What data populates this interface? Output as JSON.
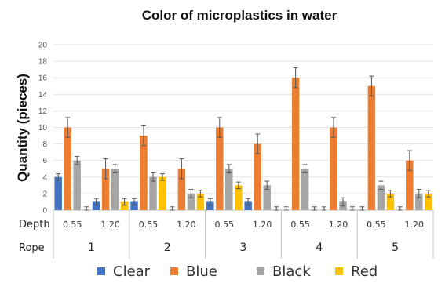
{
  "chart_data": {
    "type": "bar",
    "title": "Color of microplastics in water",
    "ylabel": "Quantity (pieces)",
    "xlabel": "",
    "ylim": [
      0,
      20
    ],
    "yticks": [
      0,
      2,
      4,
      6,
      8,
      10,
      12,
      14,
      16,
      18,
      20
    ],
    "grid": true,
    "legend_position": "bottom",
    "row_labels": {
      "depth": "Depth",
      "rope": "Rope"
    },
    "ropes": [
      "1",
      "2",
      "3",
      "4",
      "5"
    ],
    "depths": [
      "0.55",
      "1.20"
    ],
    "categories": [
      {
        "rope": "1",
        "depth": "0.55"
      },
      {
        "rope": "1",
        "depth": "1.20"
      },
      {
        "rope": "2",
        "depth": "0.55"
      },
      {
        "rope": "2",
        "depth": "1.20"
      },
      {
        "rope": "3",
        "depth": "0.55"
      },
      {
        "rope": "3",
        "depth": "1.20"
      },
      {
        "rope": "4",
        "depth": "0.55"
      },
      {
        "rope": "4",
        "depth": "1.20"
      },
      {
        "rope": "5",
        "depth": "0.55"
      },
      {
        "rope": "5",
        "depth": "1.20"
      }
    ],
    "series": [
      {
        "name": "Clear",
        "color": "#4472c4",
        "values": [
          4,
          1,
          1,
          0,
          1,
          1,
          0,
          0,
          0,
          0
        ],
        "errors": [
          0.4,
          0.4,
          0.4,
          0.4,
          0.4,
          0.4,
          0.4,
          0.4,
          0.4,
          0.4
        ]
      },
      {
        "name": "Blue",
        "color": "#ed7d31",
        "values": [
          10,
          5,
          9,
          5,
          10,
          8,
          16,
          10,
          15,
          6
        ],
        "errors": [
          1.2,
          1.2,
          1.2,
          1.2,
          1.2,
          1.2,
          1.2,
          1.2,
          1.2,
          1.2
        ]
      },
      {
        "name": "Black",
        "color": "#a5a5a5",
        "values": [
          6,
          5,
          4,
          2,
          5,
          3,
          5,
          1,
          3,
          2
        ],
        "errors": [
          0.5,
          0.5,
          0.5,
          0.5,
          0.5,
          0.5,
          0.5,
          0.5,
          0.5,
          0.5
        ]
      },
      {
        "name": "Red",
        "color": "#ffc000",
        "values": [
          0,
          1,
          4,
          2,
          3,
          0,
          0,
          0,
          2,
          2
        ],
        "errors": [
          0.4,
          0.4,
          0.4,
          0.4,
          0.4,
          0.4,
          0.4,
          0.4,
          0.4,
          0.4
        ]
      }
    ]
  }
}
